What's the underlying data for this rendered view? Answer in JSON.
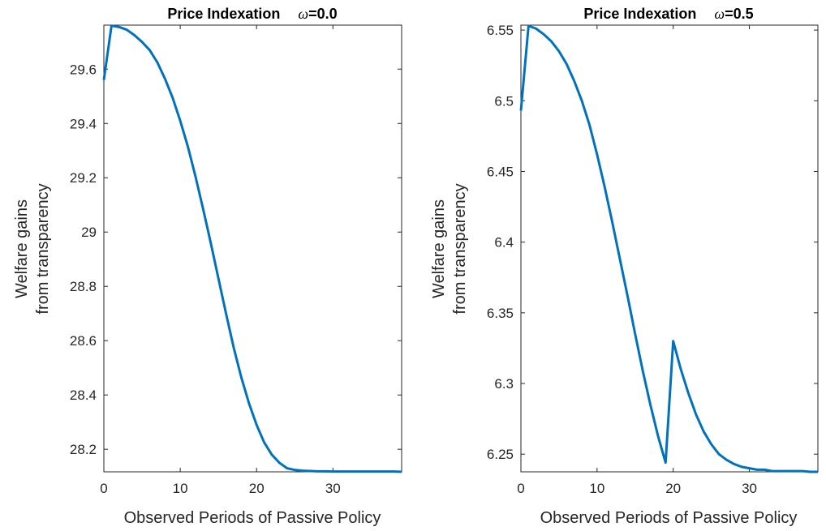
{
  "figure": {
    "line_color": "#0072BD",
    "axis_color": "#262626"
  },
  "chart_data": [
    {
      "type": "line",
      "title": "Price Indexation",
      "title_param_symbol": "ω",
      "title_param_value": "=0.0",
      "xlabel": "Observed Periods of Passive Policy",
      "ylabel_line1": "Welfare gains",
      "ylabel_line2": "from transparency",
      "xlim": [
        0,
        39
      ],
      "ylim": [
        28.117,
        29.762
      ],
      "xticks": [
        0,
        10,
        20,
        30
      ],
      "xtick_labels": [
        "0",
        "10",
        "20",
        "30"
      ],
      "yticks": [
        28.2,
        28.4,
        28.6,
        28.8,
        29.0,
        29.2,
        29.4,
        29.6
      ],
      "ytick_labels": [
        "28.2",
        "28.4",
        "28.6",
        "28.8",
        "29",
        "29.2",
        "29.4",
        "29.6"
      ],
      "grid": false,
      "box": true,
      "series": [
        {
          "x": [
            0,
            1,
            2,
            3,
            4,
            5,
            6,
            7,
            8,
            9,
            10,
            11,
            12,
            13,
            14,
            15,
            16,
            17,
            18,
            19,
            20,
            21,
            22,
            23,
            24,
            25,
            26,
            27,
            28,
            29,
            30,
            31,
            32,
            33,
            34,
            35,
            36,
            37,
            38,
            39
          ],
          "y": [
            29.56,
            29.76,
            29.755,
            29.745,
            29.725,
            29.7,
            29.67,
            29.625,
            29.565,
            29.495,
            29.41,
            29.315,
            29.205,
            29.085,
            28.96,
            28.83,
            28.7,
            28.575,
            28.465,
            28.37,
            28.29,
            28.225,
            28.18,
            28.15,
            28.13,
            28.124,
            28.121,
            28.12,
            28.119,
            28.119,
            28.118,
            28.118,
            28.118,
            28.118,
            28.118,
            28.118,
            28.118,
            28.118,
            28.118,
            28.117
          ]
        }
      ]
    },
    {
      "type": "line",
      "title": "Price Indexation",
      "title_param_symbol": "ω",
      "title_param_value": "=0.5",
      "xlabel": "Observed Periods of Passive Policy",
      "ylabel_line1": "Welfare gains",
      "ylabel_line2": "from transparency",
      "xlim": [
        0,
        39
      ],
      "ylim": [
        6.2375,
        6.5535
      ],
      "xticks": [
        0,
        10,
        20,
        30
      ],
      "xtick_labels": [
        "0",
        "10",
        "20",
        "30"
      ],
      "yticks": [
        6.25,
        6.3,
        6.35,
        6.4,
        6.45,
        6.5,
        6.55
      ],
      "ytick_labels": [
        "6.25",
        "6.3",
        "6.35",
        "6.4",
        "6.45",
        "6.5",
        "6.55"
      ],
      "grid": false,
      "box": true,
      "series": [
        {
          "x": [
            0,
            1,
            2,
            3,
            4,
            5,
            6,
            7,
            8,
            9,
            10,
            11,
            12,
            13,
            14,
            15,
            16,
            17,
            18,
            19,
            20,
            21,
            22,
            23,
            24,
            25,
            26,
            27,
            28,
            29,
            30,
            31,
            32,
            33,
            34,
            35,
            36,
            37,
            38,
            39
          ],
          "y": [
            6.493,
            6.553,
            6.551,
            6.547,
            6.542,
            6.535,
            6.526,
            6.514,
            6.5,
            6.483,
            6.462,
            6.439,
            6.414,
            6.388,
            6.362,
            6.335,
            6.309,
            6.285,
            6.263,
            6.244,
            6.33,
            6.31,
            6.293,
            6.278,
            6.266,
            6.257,
            6.25,
            6.246,
            6.243,
            6.241,
            6.24,
            6.239,
            6.239,
            6.238,
            6.238,
            6.238,
            6.238,
            6.238,
            6.2375,
            6.2375
          ]
        }
      ]
    }
  ]
}
